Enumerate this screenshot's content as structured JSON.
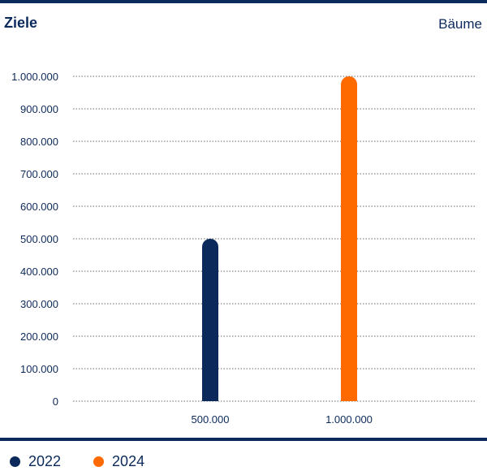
{
  "chart_data": {
    "type": "bar",
    "title": "Ziele",
    "unit_label": "Bäume",
    "categories": [
      "500.000",
      "1.000.000"
    ],
    "series": [
      {
        "name": "2022",
        "color": "#0b2a5b",
        "values": [
          500000,
          0
        ]
      },
      {
        "name": "2024",
        "color": "#ff6a00",
        "values": [
          0,
          1000000
        ]
      }
    ],
    "ylim": [
      0,
      1000000
    ],
    "yticks": [
      0,
      100000,
      200000,
      300000,
      400000,
      500000,
      600000,
      700000,
      800000,
      900000,
      1000000
    ],
    "ytick_labels": [
      "0",
      "100.000",
      "200.000",
      "300.000",
      "400.000",
      "500.000",
      "600.000",
      "700.000",
      "800.000",
      "900.000",
      "1.000.000"
    ],
    "grid": "horizontal-dotted",
    "legend_position": "bottom-left"
  }
}
